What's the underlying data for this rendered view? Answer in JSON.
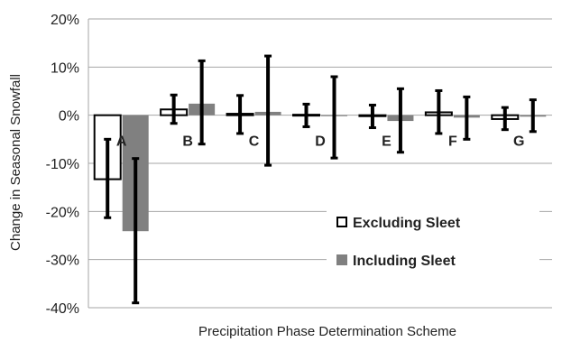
{
  "chart_data": {
    "type": "bar",
    "title": "",
    "xlabel": "Precipitation Phase Determination Scheme",
    "ylabel": "Change in Seasonal Snowfall",
    "ylim": [
      -40,
      20
    ],
    "y_ticks": [
      20,
      10,
      0,
      -10,
      -20,
      -30,
      -40
    ],
    "y_tick_labels": [
      "20%",
      "10%",
      "0%",
      "-10%",
      "-20%",
      "-30%",
      "-40%"
    ],
    "grid": true,
    "legend_position": "bottom-right",
    "categories": [
      "A",
      "B",
      "C",
      "D",
      "E",
      "F",
      "G"
    ],
    "series": [
      {
        "name": "Excluding Sleet",
        "style": "hollow",
        "color": "#000000",
        "values": [
          -13.3,
          1.2,
          0.3,
          0.1,
          -0.2,
          0.6,
          -0.8
        ],
        "error_low": [
          -21.3,
          -1.7,
          -3.8,
          -2.4,
          -2.6,
          -3.8,
          -3.0
        ],
        "error_high": [
          -5.0,
          4.2,
          4.1,
          2.3,
          2.1,
          5.1,
          1.6
        ]
      },
      {
        "name": "Including Sleet",
        "style": "filled",
        "color": "#808080",
        "values": [
          -24.1,
          2.4,
          0.7,
          -0.2,
          -1.2,
          -0.5,
          -0.3
        ],
        "error_low": [
          -39.0,
          -6.0,
          -10.4,
          -8.9,
          -7.7,
          -5.0,
          -3.4
        ],
        "error_high": [
          -9.0,
          11.3,
          12.3,
          8.0,
          5.5,
          3.8,
          3.2
        ]
      }
    ]
  }
}
